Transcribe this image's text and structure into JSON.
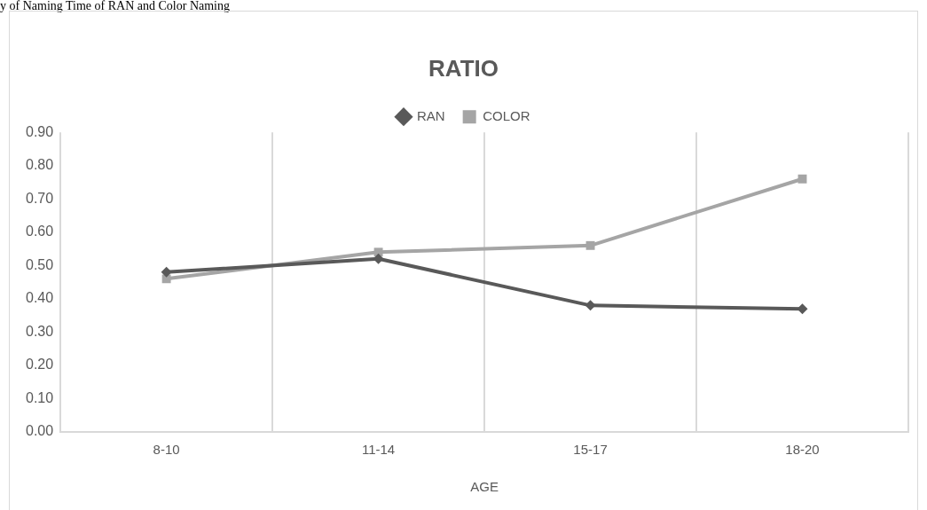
{
  "chart_data": {
    "type": "line",
    "title": "RATIO",
    "xlabel": "AGE",
    "annotations": [
      "y of Naming Time of RAN and Color Naming"
    ],
    "categories": [
      "8-10",
      "11-14",
      "15-17",
      "18-20"
    ],
    "series": [
      {
        "name": "RAN",
        "color": "#595959",
        "marker": "diamond",
        "values": [
          0.48,
          0.52,
          0.38,
          0.37
        ]
      },
      {
        "name": "COLOR",
        "color": "#a5a5a5",
        "marker": "square",
        "values": [
          0.46,
          0.54,
          0.56,
          0.76
        ]
      }
    ],
    "ylim": [
      0,
      0.9
    ],
    "yticks": [
      {
        "value": 0,
        "label": "0.00"
      },
      {
        "value": 0.1,
        "label": "0.10"
      },
      {
        "value": 0.2,
        "label": "0.20"
      },
      {
        "value": 0.3,
        "label": "0.30"
      },
      {
        "value": 0.4,
        "label": "0.40"
      },
      {
        "value": 0.5,
        "label": "0.50"
      },
      {
        "value": 0.6,
        "label": "0.60"
      },
      {
        "value": 0.7,
        "label": "0.70"
      },
      {
        "value": 0.8,
        "label": "0.80"
      },
      {
        "value": 0.9,
        "label": "0.90"
      }
    ],
    "grid": "x",
    "legend": "top",
    "line_style": "solid"
  }
}
